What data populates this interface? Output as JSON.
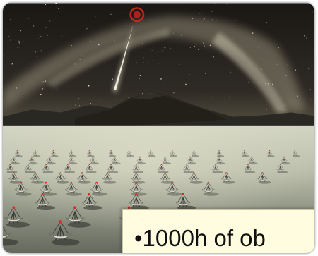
{
  "illustration": {
    "subject": "array-of-dish-telescopes-under-night-sky",
    "colors": {
      "sky_top": "#1d1a17",
      "sky_horizon": "#4a4538",
      "milky_way": "#cfc6a8",
      "mountain": "#2c2a25",
      "ground_far": "#c8ccb8",
      "ground_near": "#6a6e63",
      "dish": "#d9d7cc",
      "dish_tip": "#e0261e",
      "meteor": "#f1efe3"
    }
  },
  "caption": {
    "text": "•1000h of ob"
  }
}
